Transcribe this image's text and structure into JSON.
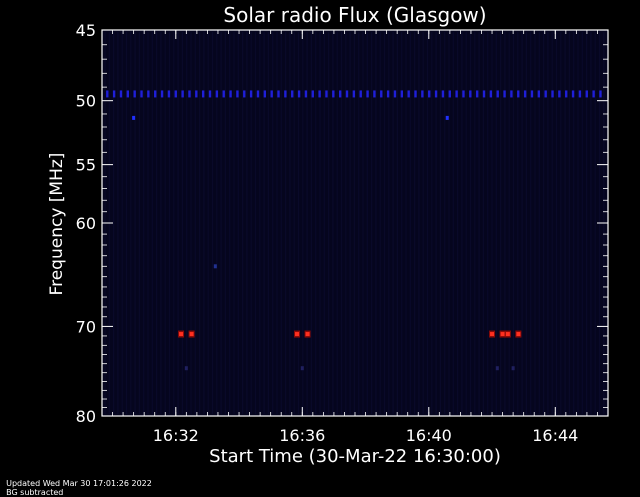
{
  "chart_data": {
    "type": "heatmap",
    "title": "Solar radio Flux (Glasgow)",
    "xlabel": "Start Time (30-Mar-22 16:30:00)",
    "ylabel": "Frequency [MHz]",
    "x_unit": "HH:MM",
    "xlim": [
      "16:29:40",
      "16:45:40"
    ],
    "x_ticks": [
      "16:32",
      "16:36",
      "16:40",
      "16:44"
    ],
    "ylim": [
      45,
      80
    ],
    "y_scale": "inverted-log",
    "y_ticks": [
      45,
      50,
      55,
      60,
      70,
      80
    ],
    "background_color": "#05051e",
    "features": [
      {
        "label": "RFI line",
        "frequency_mhz": 49.5,
        "color": "#1f1fd8",
        "time_start": "16:29:50",
        "time_end": "16:45:30",
        "dashed": true
      },
      {
        "label": "burst",
        "frequency_mhz": 70.8,
        "color": "#ff3020",
        "times": [
          "16:32:10",
          "16:32:30",
          "16:35:50",
          "16:36:10",
          "16:42:00",
          "16:42:20",
          "16:42:30",
          "16:42:50"
        ]
      },
      {
        "label": "weak signal",
        "frequency_mhz": 74.5,
        "color": "#202060",
        "times": [
          "16:32:20",
          "16:36:00",
          "16:42:10",
          "16:42:40"
        ]
      },
      {
        "label": "isolated dot",
        "frequency_mhz": 51.3,
        "color": "#2030ff",
        "times": [
          "16:30:40",
          "16:40:35"
        ]
      },
      {
        "label": "isolated dot",
        "frequency_mhz": 64.0,
        "color": "#203090",
        "times": [
          "16:33:15"
        ]
      }
    ]
  },
  "footer": {
    "updated": "Updated Wed Mar 30 17:01:26 2022",
    "note": "BG subtracted"
  }
}
